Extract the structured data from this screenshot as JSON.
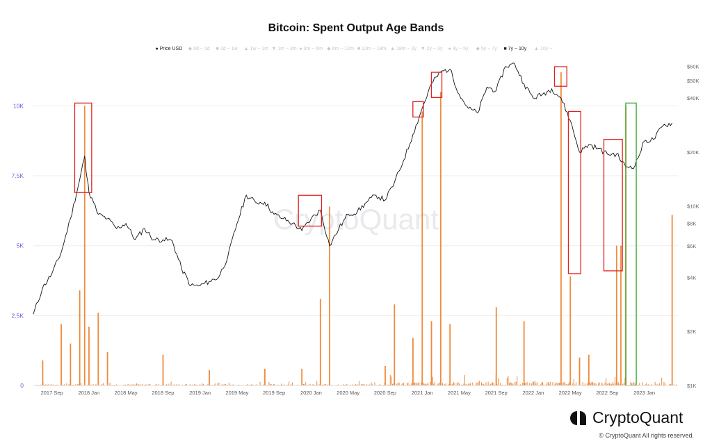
{
  "chart_data": {
    "type": "bar+line",
    "title": "Bitcoin: Spent Output Age Bands",
    "legend": [
      {
        "label": "Price USD",
        "marker": "●",
        "active": true,
        "color": "#111111"
      },
      {
        "label": "0d ~ 1d",
        "marker": "◆",
        "active": false
      },
      {
        "label": "1d ~ 1w",
        "marker": "■",
        "active": false
      },
      {
        "label": "1w ~ 1m",
        "marker": "▲",
        "active": false
      },
      {
        "label": "1m ~ 3m",
        "marker": "▼",
        "active": false
      },
      {
        "label": "3m ~ 6m",
        "marker": "●",
        "active": false
      },
      {
        "label": "6m ~ 12m",
        "marker": "◆",
        "active": false
      },
      {
        "label": "12m ~ 18m",
        "marker": "■",
        "active": false
      },
      {
        "label": "18m ~ 2y",
        "marker": "▲",
        "active": false
      },
      {
        "label": "2y ~ 3y",
        "marker": "▼",
        "active": false
      },
      {
        "label": "3y ~ 5y",
        "marker": "●",
        "active": false
      },
      {
        "label": "5y ~ 7y",
        "marker": "◆",
        "active": false
      },
      {
        "label": "7y ~ 10y",
        "marker": "■",
        "active": true,
        "color": "#f08a3c"
      },
      {
        "label": "10y ~",
        "marker": "▲",
        "active": false
      }
    ],
    "left_axis": {
      "ticks": [
        0,
        2500,
        5000,
        7500,
        10000
      ],
      "labels": [
        "0",
        "2.5K",
        "5K",
        "7.5K",
        "10K"
      ],
      "ylim": [
        0,
        11500
      ]
    },
    "right_axis": {
      "scale": "log",
      "ticks": [
        1000,
        2000,
        4000,
        6000,
        8000,
        10000,
        20000,
        40000,
        50000,
        60000
      ],
      "labels": [
        "$1K",
        "$2K",
        "$4K",
        "$6K",
        "$8K",
        "$10K",
        "$20K",
        "$40K",
        "$50K",
        "$60K"
      ],
      "ylim": [
        1000,
        62000
      ]
    },
    "x_axis": {
      "labels": [
        "2017 Sep",
        "2018 Jan",
        "2018 May",
        "2018 Sep",
        "2019 Jan",
        "2019 May",
        "2019 Sep",
        "2020 Jan",
        "2020 May",
        "2020 Sep",
        "2021 Jan",
        "2021 May",
        "2021 Sep",
        "2022 Jan",
        "2022 May",
        "2022 Sep",
        "2023 Jan"
      ],
      "start": "2017-07",
      "end": "2023-04"
    },
    "series": [
      {
        "name": "Price USD",
        "axis": "right",
        "color": "#111111",
        "dates": [
          "2017-07",
          "2017-08",
          "2017-09",
          "2017-10",
          "2017-11",
          "2017-12",
          "2017-12-17",
          "2018-01",
          "2018-02",
          "2018-03",
          "2018-04",
          "2018-05",
          "2018-06",
          "2018-07",
          "2018-08",
          "2018-09",
          "2018-10",
          "2018-11",
          "2018-12",
          "2019-01",
          "2019-02",
          "2019-03",
          "2019-04",
          "2019-05",
          "2019-06",
          "2019-07",
          "2019-08",
          "2019-09",
          "2019-10",
          "2019-11",
          "2019-12",
          "2020-01",
          "2020-02",
          "2020-03",
          "2020-04",
          "2020-05",
          "2020-06",
          "2020-07",
          "2020-08",
          "2020-09",
          "2020-10",
          "2020-11",
          "2020-12",
          "2021-01",
          "2021-02",
          "2021-03",
          "2021-04",
          "2021-05",
          "2021-06",
          "2021-07",
          "2021-08",
          "2021-09",
          "2021-10",
          "2021-11",
          "2021-12",
          "2022-01",
          "2022-02",
          "2022-03",
          "2022-04",
          "2022-05",
          "2022-06",
          "2022-07",
          "2022-08",
          "2022-09",
          "2022-10",
          "2022-11",
          "2022-12",
          "2023-01",
          "2023-02",
          "2023-03",
          "2023-04"
        ],
        "values": [
          2500,
          3500,
          4200,
          5500,
          8500,
          14000,
          19000,
          12000,
          9000,
          8500,
          7500,
          8000,
          6500,
          7500,
          6500,
          6500,
          6400,
          4500,
          3600,
          3600,
          3800,
          4000,
          5200,
          8000,
          11500,
          10500,
          10500,
          9000,
          8500,
          8000,
          7300,
          8500,
          9500,
          6000,
          7500,
          9000,
          9300,
          10500,
          11500,
          10800,
          13500,
          18000,
          25000,
          35000,
          48000,
          56000,
          58000,
          42000,
          35000,
          33000,
          46000,
          44000,
          60000,
          62000,
          48000,
          40000,
          42000,
          45000,
          40000,
          30000,
          20000,
          22000,
          21000,
          19500,
          19500,
          16500,
          16800,
          23000,
          23500,
          28000,
          29000
        ]
      },
      {
        "name": "7y ~ 10y",
        "axis": "left",
        "color": "#f08a3c",
        "spikes": [
          {
            "date": "2017-08",
            "value": 900
          },
          {
            "date": "2017-10",
            "value": 2200
          },
          {
            "date": "2017-11",
            "value": 1500
          },
          {
            "date": "2017-12",
            "value": 3400
          },
          {
            "date": "2017-12-17",
            "value": 10000
          },
          {
            "date": "2018-01",
            "value": 2100
          },
          {
            "date": "2018-02",
            "value": 2600
          },
          {
            "date": "2018-03",
            "value": 1200
          },
          {
            "date": "2018-09",
            "value": 1100
          },
          {
            "date": "2019-02",
            "value": 550
          },
          {
            "date": "2019-08",
            "value": 600
          },
          {
            "date": "2019-12",
            "value": 600
          },
          {
            "date": "2020-02",
            "value": 3100
          },
          {
            "date": "2020-03",
            "value": 6400
          },
          {
            "date": "2020-09",
            "value": 700
          },
          {
            "date": "2020-10",
            "value": 2900
          },
          {
            "date": "2020-12",
            "value": 1700
          },
          {
            "date": "2021-01",
            "value": 9800
          },
          {
            "date": "2021-02",
            "value": 2300
          },
          {
            "date": "2021-03",
            "value": 10500
          },
          {
            "date": "2021-04",
            "value": 2200
          },
          {
            "date": "2021-09",
            "value": 2800
          },
          {
            "date": "2021-12",
            "value": 2300
          },
          {
            "date": "2022-04",
            "value": 11200
          },
          {
            "date": "2022-05",
            "value": 3900
          },
          {
            "date": "2022-06",
            "value": 1000
          },
          {
            "date": "2022-07",
            "value": 1100
          },
          {
            "date": "2022-10",
            "value": 5000
          },
          {
            "date": "2022-10-15",
            "value": 5000
          },
          {
            "date": "2022-11",
            "value": 10000
          },
          {
            "date": "2023-04",
            "value": 6100
          }
        ]
      }
    ],
    "annotations": [
      {
        "color": "#e02020",
        "from": "2017-11-15",
        "to": "2018-01-10",
        "top": 10100,
        "bottom": 6900
      },
      {
        "color": "#e02020",
        "from": "2019-11-20",
        "to": "2020-02-05",
        "top": 6800,
        "bottom": 5700
      },
      {
        "color": "#e02020",
        "from": "2020-12-01",
        "to": "2021-01-05",
        "top": 10150,
        "bottom": 9600
      },
      {
        "color": "#e02020",
        "from": "2021-02-01",
        "to": "2021-03-05",
        "top": 11200,
        "bottom": 10300
      },
      {
        "color": "#e02020",
        "from": "2022-03-10",
        "to": "2022-04-20",
        "top": 11400,
        "bottom": 10700
      },
      {
        "color": "#e02020",
        "from": "2022-04-25",
        "to": "2022-06-05",
        "top": 9800,
        "bottom": 4000
      },
      {
        "color": "#e02020",
        "from": "2022-08-20",
        "to": "2022-10-20",
        "top": 8800,
        "bottom": 4100
      },
      {
        "color": "#2eaa2e",
        "from": "2022-11-01",
        "to": "2022-12-05",
        "top": 10100,
        "bottom": 0
      }
    ],
    "watermark": "CryptoQuant"
  },
  "footer": {
    "brand": "CryptoQuant",
    "copyright": "© CryptoQuant All rights reserved."
  }
}
